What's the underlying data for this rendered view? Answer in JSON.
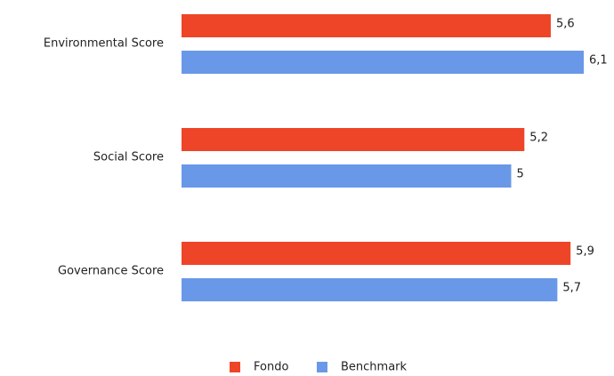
{
  "chart_data": {
    "type": "bar",
    "orientation": "horizontal",
    "categories": [
      "Environmental Score",
      "Social Score",
      "Governance Score"
    ],
    "series": [
      {
        "name": "Fondo",
        "color": "#ee4528",
        "values": [
          5.6,
          5.2,
          5.9
        ],
        "value_labels": [
          "5,6",
          "5,2",
          "5,9"
        ]
      },
      {
        "name": "Benchmark",
        "color": "#6a98e8",
        "values": [
          6.1,
          5,
          5.7
        ],
        "value_labels": [
          "6,1",
          "5",
          "5,7"
        ]
      }
    ],
    "legend": "bottom"
  }
}
